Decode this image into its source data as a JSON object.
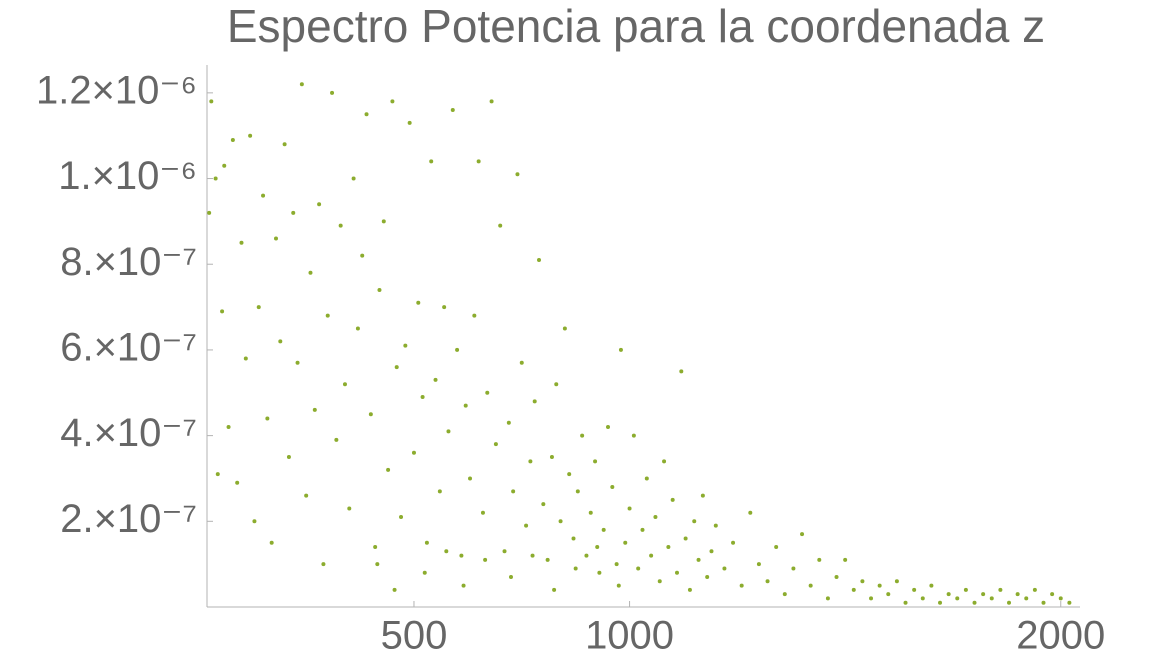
{
  "chart_data": {
    "type": "scatter",
    "title": "Espectro Potencia para la coordenada z",
    "color": "#8cac2e",
    "xlim": [
      20,
      2040
    ],
    "ylim": [
      0,
      1.265e-06
    ],
    "xticks": [
      500,
      1000,
      2000
    ],
    "yticks": [
      {
        "value": 2e-07,
        "label": "2.×10⁻⁷"
      },
      {
        "value": 4e-07,
        "label": "4.×10⁻⁷"
      },
      {
        "value": 6e-07,
        "label": "6.×10⁻⁷"
      },
      {
        "value": 8e-07,
        "label": "8.×10⁻⁷"
      },
      {
        "value": 1e-06,
        "label": "1.×10⁻⁶"
      },
      {
        "value": 1.2e-06,
        "label": "1.2×10⁻⁶"
      }
    ],
    "x": [
      25,
      30,
      40,
      45,
      55,
      60,
      70,
      80,
      90,
      100,
      110,
      120,
      130,
      140,
      150,
      160,
      170,
      180,
      190,
      200,
      210,
      220,
      230,
      240,
      250,
      260,
      270,
      280,
      290,
      300,
      310,
      320,
      330,
      340,
      350,
      360,
      370,
      380,
      390,
      400,
      410,
      420,
      430,
      440,
      450,
      460,
      470,
      480,
      490,
      500,
      510,
      520,
      530,
      540,
      550,
      560,
      570,
      580,
      590,
      600,
      610,
      620,
      630,
      640,
      650,
      660,
      670,
      680,
      690,
      700,
      710,
      720,
      730,
      740,
      750,
      760,
      770,
      780,
      790,
      800,
      810,
      820,
      830,
      840,
      850,
      860,
      870,
      880,
      890,
      900,
      910,
      920,
      930,
      940,
      950,
      960,
      970,
      980,
      990,
      1000,
      1010,
      1020,
      1030,
      1040,
      1050,
      1060,
      1070,
      1080,
      1090,
      1100,
      1110,
      1120,
      1130,
      1140,
      1150,
      1160,
      1170,
      1180,
      1190,
      1200,
      1220,
      1240,
      1260,
      1280,
      1300,
      1320,
      1340,
      1360,
      1380,
      1400,
      1420,
      1440,
      1460,
      1480,
      1500,
      1520,
      1540,
      1560,
      1580,
      1600,
      1620,
      1640,
      1660,
      1680,
      1700,
      1720,
      1740,
      1760,
      1780,
      1800,
      1820,
      1840,
      1860,
      1880,
      1900,
      1920,
      1940,
      1960,
      1980,
      2000,
      2020,
      415,
      455,
      525,
      575,
      615,
      665,
      725,
      775,
      825,
      875,
      925,
      975
    ],
    "y": [
      9.2e-07,
      1.18e-06,
      1e-06,
      3.1e-07,
      6.9e-07,
      1.03e-06,
      4.2e-07,
      1.09e-06,
      2.9e-07,
      8.5e-07,
      5.8e-07,
      1.1e-06,
      2e-07,
      7e-07,
      9.6e-07,
      4.4e-07,
      1.5e-07,
      8.6e-07,
      6.2e-07,
      1.08e-06,
      3.5e-07,
      9.2e-07,
      5.7e-07,
      1.22e-06,
      2.6e-07,
      7.8e-07,
      4.6e-07,
      9.4e-07,
      1e-07,
      6.8e-07,
      1.2e-06,
      3.9e-07,
      8.9e-07,
      5.2e-07,
      2.3e-07,
      1e-06,
      6.5e-07,
      8.2e-07,
      1.15e-06,
      4.5e-07,
      1.4e-07,
      7.4e-07,
      9e-07,
      3.2e-07,
      1.18e-06,
      5.6e-07,
      2.1e-07,
      6.1e-07,
      1.13e-06,
      3.6e-07,
      7.1e-07,
      4.9e-07,
      1.5e-07,
      1.04e-06,
      5.3e-07,
      2.7e-07,
      7e-07,
      4.1e-07,
      1.16e-06,
      6e-07,
      1.2e-07,
      4.7e-07,
      3e-07,
      6.8e-07,
      1.04e-06,
      2.2e-07,
      5e-07,
      1.18e-06,
      3.8e-07,
      8.9e-07,
      1.3e-07,
      4.3e-07,
      2.7e-07,
      1.01e-06,
      5.7e-07,
      1.9e-07,
      3.4e-07,
      4.8e-07,
      8.1e-07,
      2.4e-07,
      1.1e-07,
      3.5e-07,
      5.2e-07,
      2e-07,
      6.5e-07,
      3.1e-07,
      1.6e-07,
      2.7e-07,
      4e-07,
      1.2e-07,
      2.2e-07,
      3.4e-07,
      8e-08,
      1.8e-07,
      4.2e-07,
      2.8e-07,
      1e-07,
      6e-07,
      1.5e-07,
      2.3e-07,
      4e-07,
      9e-08,
      1.8e-07,
      3e-07,
      1.2e-07,
      2.1e-07,
      6e-08,
      3.4e-07,
      1.4e-07,
      2.5e-07,
      8e-08,
      5.5e-07,
      1.6e-07,
      4e-08,
      2e-07,
      1.1e-07,
      2.6e-07,
      7e-08,
      1.3e-07,
      1.9e-07,
      9e-08,
      1.5e-07,
      5e-08,
      2.2e-07,
      1e-07,
      6e-08,
      1.4e-07,
      3e-08,
      9e-08,
      1.7e-07,
      5e-08,
      1.1e-07,
      2e-08,
      7e-08,
      1.1e-07,
      4e-08,
      6e-08,
      2e-08,
      5e-08,
      3e-08,
      6e-08,
      1e-08,
      4e-08,
      2e-08,
      5e-08,
      1e-08,
      3e-08,
      2e-08,
      4e-08,
      1e-08,
      3e-08,
      2e-08,
      4e-08,
      1e-08,
      3e-08,
      2e-08,
      4e-08,
      1e-08,
      3e-08,
      2e-08,
      1e-08,
      1e-07,
      4e-08,
      8e-08,
      1.3e-07,
      5e-08,
      1.1e-07,
      7e-08,
      1.2e-07,
      4e-08,
      9e-08,
      1.4e-07,
      5e-08
    ]
  }
}
